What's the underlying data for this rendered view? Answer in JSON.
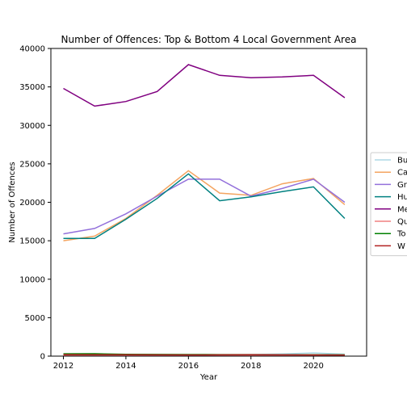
{
  "chart_data": {
    "type": "line",
    "title": "Number of Offences: Top & Bottom 4 Local Government Area",
    "xlabel": "Year",
    "ylabel": "Number of Offences",
    "x": [
      2012,
      2013,
      2014,
      2015,
      2016,
      2017,
      2018,
      2019,
      2020,
      2021
    ],
    "xlim": [
      2011.6,
      2021.7
    ],
    "ylim": [
      0,
      40000
    ],
    "xticks": [
      2012,
      2014,
      2016,
      2018,
      2020
    ],
    "yticks": [
      0,
      5000,
      10000,
      15000,
      20000,
      25000,
      30000,
      35000,
      40000
    ],
    "grid": false,
    "legend_position": "right, outside plot (clipped)",
    "series": [
      {
        "name": "Bu",
        "color": "#add8e6",
        "values": [
          150,
          120,
          130,
          140,
          150,
          160,
          200,
          280,
          420,
          250
        ]
      },
      {
        "name": "Ca",
        "color": "#f4a460",
        "values": [
          15000,
          15600,
          17900,
          20900,
          24100,
          21200,
          20900,
          22400,
          23100,
          19700
        ]
      },
      {
        "name": "Gr",
        "color": "#9370db",
        "values": [
          15900,
          16600,
          18500,
          20800,
          23000,
          23000,
          20800,
          21800,
          23000,
          20000
        ]
      },
      {
        "name": "Hu",
        "color": "#008080",
        "values": [
          15300,
          15300,
          17800,
          20500,
          23700,
          20200,
          20700,
          21400,
          22000,
          17900
        ]
      },
      {
        "name": "Me",
        "color": "#800080",
        "values": [
          34800,
          32500,
          33100,
          34400,
          37900,
          36500,
          36200,
          36300,
          36500,
          33600
        ]
      },
      {
        "name": "Qu",
        "color": "#f08080",
        "values": [
          80,
          70,
          60,
          60,
          60,
          70,
          80,
          90,
          80,
          70
        ]
      },
      {
        "name": "To",
        "color": "#008000",
        "values": [
          300,
          320,
          230,
          220,
          210,
          200,
          200,
          190,
          180,
          170
        ]
      },
      {
        "name": "W",
        "color": "#b22222",
        "values": [
          200,
          190,
          180,
          170,
          160,
          170,
          180,
          170,
          160,
          150
        ]
      }
    ]
  }
}
